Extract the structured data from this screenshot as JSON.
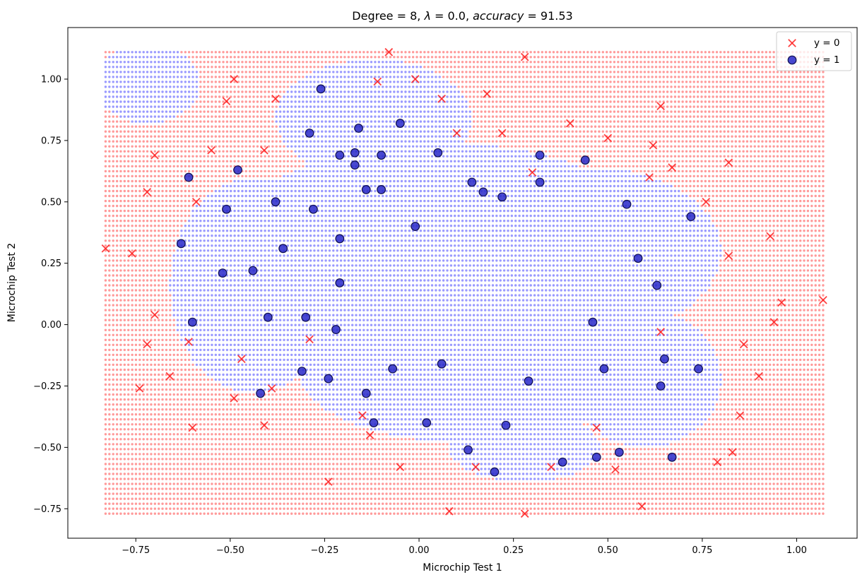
{
  "chart_data": {
    "type": "scatter",
    "title_parts": {
      "prefix": "Degree = 8, ",
      "lambda_symbol": "λ",
      "middle": " = 0.0, ",
      "acc_word": "accuracy",
      "suffix": " = 91.53"
    },
    "xlabel": "Microchip Test 1",
    "ylabel": "Microchip Test 2",
    "xlim": [
      -0.93,
      1.16
    ],
    "ylim": [
      -0.87,
      1.21
    ],
    "xticks": [
      -0.75,
      -0.5,
      -0.25,
      0.0,
      0.25,
      0.5,
      0.75,
      1.0
    ],
    "xtick_labels": [
      "−0.75",
      "−0.50",
      "−0.25",
      "0.00",
      "0.25",
      "0.50",
      "0.75",
      "1.00"
    ],
    "yticks": [
      -0.75,
      -0.5,
      -0.25,
      0.0,
      0.25,
      0.5,
      0.75,
      1.0
    ],
    "ytick_labels": [
      "−0.75",
      "−0.50",
      "−0.25",
      "0.00",
      "0.25",
      "0.50",
      "0.75",
      "1.00"
    ],
    "grid": false,
    "legend_position": "top-right",
    "colors": {
      "neg": "#ff2020",
      "pos_face": "#2828c8",
      "pos_edge": "#101050",
      "region_neg": "#ff9a9a",
      "region_pos": "#9a9aff"
    },
    "decision_region": {
      "x_range": [
        -0.83,
        1.07
      ],
      "y_range": [
        -0.77,
        1.11
      ],
      "x_steps": 190,
      "y_steps": 94
    },
    "series": [
      {
        "name": "y = 0",
        "marker": "x",
        "points": [
          [
            -0.83,
            0.31
          ],
          [
            -0.76,
            0.29
          ],
          [
            -0.74,
            -0.26
          ],
          [
            -0.72,
            0.54
          ],
          [
            -0.72,
            -0.08
          ],
          [
            -0.7,
            0.69
          ],
          [
            -0.7,
            0.04
          ],
          [
            -0.66,
            -0.21
          ],
          [
            -0.61,
            -0.07
          ],
          [
            -0.6,
            -0.42
          ],
          [
            -0.59,
            0.5
          ],
          [
            -0.55,
            0.71
          ],
          [
            -0.51,
            0.91
          ],
          [
            -0.49,
            1.0
          ],
          [
            -0.49,
            -0.3
          ],
          [
            -0.47,
            -0.14
          ],
          [
            -0.41,
            0.71
          ],
          [
            -0.41,
            -0.41
          ],
          [
            -0.39,
            -0.26
          ],
          [
            -0.38,
            0.92
          ],
          [
            -0.29,
            -0.06
          ],
          [
            -0.24,
            -0.64
          ],
          [
            -0.15,
            -0.37
          ],
          [
            -0.13,
            -0.45
          ],
          [
            -0.11,
            0.99
          ],
          [
            -0.08,
            1.11
          ],
          [
            -0.05,
            -0.58
          ],
          [
            -0.01,
            1.0
          ],
          [
            0.06,
            0.92
          ],
          [
            0.08,
            -0.76
          ],
          [
            0.1,
            0.78
          ],
          [
            0.15,
            -0.58
          ],
          [
            0.18,
            0.94
          ],
          [
            0.22,
            0.78
          ],
          [
            0.28,
            1.09
          ],
          [
            0.28,
            -0.77
          ],
          [
            0.3,
            0.62
          ],
          [
            0.35,
            -0.58
          ],
          [
            0.4,
            0.82
          ],
          [
            0.47,
            -0.42
          ],
          [
            0.5,
            0.76
          ],
          [
            0.52,
            -0.59
          ],
          [
            0.59,
            -0.74
          ],
          [
            0.61,
            0.6
          ],
          [
            0.62,
            0.73
          ],
          [
            0.64,
            0.89
          ],
          [
            0.64,
            -0.03
          ],
          [
            0.67,
            0.64
          ],
          [
            0.76,
            0.5
          ],
          [
            0.79,
            -0.56
          ],
          [
            0.82,
            0.28
          ],
          [
            0.82,
            0.66
          ],
          [
            0.83,
            -0.52
          ],
          [
            0.85,
            -0.37
          ],
          [
            0.86,
            -0.08
          ],
          [
            0.9,
            -0.21
          ],
          [
            0.93,
            0.36
          ],
          [
            0.94,
            0.01
          ],
          [
            0.96,
            0.09
          ],
          [
            1.07,
            0.1
          ]
        ]
      },
      {
        "name": "y = 1",
        "marker": "o",
        "points": [
          [
            -0.63,
            0.33
          ],
          [
            -0.61,
            0.6
          ],
          [
            -0.6,
            0.01
          ],
          [
            -0.52,
            0.21
          ],
          [
            -0.51,
            0.47
          ],
          [
            -0.48,
            0.63
          ],
          [
            -0.44,
            0.22
          ],
          [
            -0.42,
            -0.28
          ],
          [
            -0.4,
            0.03
          ],
          [
            -0.38,
            0.5
          ],
          [
            -0.36,
            0.31
          ],
          [
            -0.31,
            -0.19
          ],
          [
            -0.3,
            0.03
          ],
          [
            -0.29,
            0.78
          ],
          [
            -0.28,
            0.47
          ],
          [
            -0.26,
            0.96
          ],
          [
            -0.24,
            -0.22
          ],
          [
            -0.22,
            -0.02
          ],
          [
            -0.21,
            0.69
          ],
          [
            -0.21,
            0.35
          ],
          [
            -0.21,
            0.17
          ],
          [
            -0.17,
            0.7
          ],
          [
            -0.17,
            0.65
          ],
          [
            -0.16,
            0.8
          ],
          [
            -0.14,
            0.55
          ],
          [
            -0.14,
            -0.28
          ],
          [
            -0.12,
            -0.4
          ],
          [
            -0.1,
            0.69
          ],
          [
            -0.1,
            0.55
          ],
          [
            -0.07,
            -0.18
          ],
          [
            -0.05,
            0.82
          ],
          [
            -0.01,
            0.4
          ],
          [
            0.02,
            -0.4
          ],
          [
            0.05,
            0.7
          ],
          [
            0.06,
            -0.16
          ],
          [
            0.13,
            -0.51
          ],
          [
            0.14,
            0.58
          ],
          [
            0.17,
            0.54
          ],
          [
            0.2,
            -0.6
          ],
          [
            0.22,
            0.52
          ],
          [
            0.23,
            -0.41
          ],
          [
            0.29,
            -0.23
          ],
          [
            0.32,
            0.69
          ],
          [
            0.32,
            0.58
          ],
          [
            0.38,
            -0.56
          ],
          [
            0.44,
            0.67
          ],
          [
            0.46,
            0.01
          ],
          [
            0.47,
            -0.54
          ],
          [
            0.49,
            -0.18
          ],
          [
            0.53,
            -0.52
          ],
          [
            0.55,
            0.49
          ],
          [
            0.58,
            0.27
          ],
          [
            0.63,
            0.16
          ],
          [
            0.64,
            -0.25
          ],
          [
            0.65,
            -0.14
          ],
          [
            0.67,
            -0.54
          ],
          [
            0.72,
            0.44
          ],
          [
            0.74,
            -0.18
          ]
        ]
      }
    ]
  }
}
